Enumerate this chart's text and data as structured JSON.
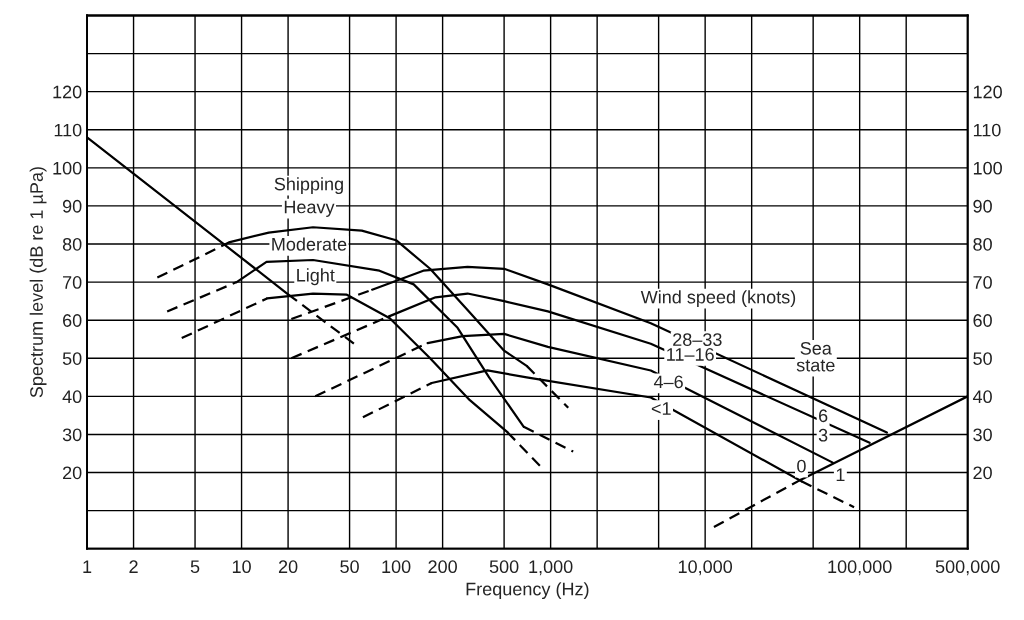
{
  "chart_data": {
    "type": "line",
    "xlabel": "Frequency (Hz)",
    "ylabel": "Spectrum level (dB re 1 µPa)",
    "log": "x",
    "grid": true,
    "legend": false,
    "xlim": [
      1,
      500000
    ],
    "ylim": [
      0,
      140
    ],
    "y2lim": [
      0,
      140
    ],
    "xticks": [
      1,
      2,
      5,
      10,
      20,
      50,
      100,
      200,
      500,
      {
        "value": 1000,
        "label": "1,000"
      },
      {
        "value": 2000,
        "label": null
      },
      {
        "value": 5000,
        "label": null
      },
      {
        "value": 10000,
        "label": "10,000"
      },
      {
        "value": 20000,
        "label": null
      },
      {
        "value": 50000,
        "label": null
      },
      {
        "value": 100000,
        "label": "100,000"
      },
      {
        "value": 200000,
        "label": null
      },
      {
        "value": 500000,
        "label": "500,000"
      }
    ],
    "yticks": [
      {
        "value": 10,
        "label": null
      },
      20,
      30,
      40,
      50,
      60,
      70,
      80,
      90,
      100,
      110,
      120,
      {
        "value": 130,
        "label": null
      }
    ],
    "y2ticks": [
      {
        "value": 10,
        "label": null
      },
      20,
      30,
      40,
      50,
      60,
      70,
      80,
      90,
      100,
      110,
      120,
      {
        "value": 130,
        "label": null
      }
    ],
    "series": [
      {
        "x": [
          1,
          20
        ],
        "values": [
          108,
          66.8
        ],
        "color": "#000000",
        "line_style": "solid"
      },
      {
        "x": [
          20,
          56
        ],
        "values": [
          66.8,
          53.2
        ],
        "color": "#000000",
        "line_style": "dashed"
      },
      {
        "x": [
          2.85,
          5,
          8.4
        ],
        "values": [
          71.2,
          76,
          80.5
        ],
        "color": "#000000",
        "line_style": "dashed"
      },
      {
        "x": [
          8.4,
          15,
          29,
          60,
          100,
          166,
          300,
          500,
          700
        ],
        "values": [
          80.5,
          83,
          84.4,
          83.5,
          81,
          73.5,
          62,
          52,
          48
        ],
        "color": "#000000",
        "line_style": "solid"
      },
      {
        "x": [
          700,
          1300
        ],
        "values": [
          48,
          37
        ],
        "color": "#000000",
        "line_style": "dashed"
      },
      {
        "x": [
          3.3,
          9.3
        ],
        "values": [
          62.3,
          70
        ],
        "color": "#000000",
        "line_style": "dashed"
      },
      {
        "x": [
          9.3,
          14.5,
          29,
          78,
          130,
          250,
          400,
          670
        ],
        "values": [
          70,
          75.3,
          75.8,
          73,
          69.4,
          58,
          45,
          32
        ],
        "color": "#000000",
        "line_style": "solid"
      },
      {
        "x": [
          670,
          1400
        ],
        "values": [
          32,
          25.5
        ],
        "color": "#000000",
        "line_style": "dashed"
      },
      {
        "x": [
          4.1,
          14.6
        ],
        "values": [
          55.3,
          65.7
        ],
        "color": "#000000",
        "line_style": "dashed"
      },
      {
        "x": [
          14.6,
          29,
          48,
          91,
          166,
          300,
          525
        ],
        "values": [
          65.7,
          67,
          66.7,
          60.5,
          50,
          39,
          30.6
        ],
        "color": "#000000",
        "line_style": "solid"
      },
      {
        "x": [
          525,
          900
        ],
        "values": [
          30.6,
          20.8
        ],
        "color": "#000000",
        "line_style": "dashed"
      },
      {
        "x": [
          21,
          70
        ],
        "values": [
          60.3,
          68
        ],
        "color": "#000000",
        "line_style": "dashed"
      },
      {
        "x": [
          70,
          150,
          290,
          500,
          960,
          4450,
          150000
        ],
        "values": [
          68,
          73,
          74,
          73.5,
          69.4,
          59.2,
          30.5
        ],
        "color": "#000000",
        "line_style": "solid"
      },
      {
        "x": [
          21,
          90
        ],
        "values": [
          50,
          61
        ],
        "color": "#000000",
        "line_style": "dashed"
      },
      {
        "x": [
          90,
          180,
          290,
          500,
          960,
          4450,
          116000
        ],
        "values": [
          61,
          66,
          67,
          65,
          62.3,
          53.8,
          27.8
        ],
        "color": "#000000",
        "line_style": "solid"
      },
      {
        "x": [
          30,
          160
        ],
        "values": [
          40,
          54
        ],
        "color": "#000000",
        "line_style": "dashed"
      },
      {
        "x": [
          160,
          270,
          500,
          960,
          4450,
          67000
        ],
        "values": [
          54,
          55.8,
          56.4,
          53,
          46.8,
          22.6
        ],
        "color": "#000000",
        "line_style": "solid"
      },
      {
        "x": [
          61,
          170
        ],
        "values": [
          34.5,
          43.5
        ],
        "color": "#000000",
        "line_style": "dashed"
      },
      {
        "x": [
          170,
          390,
          700,
          4450,
          42000
        ],
        "values": [
          43.5,
          46.8,
          45,
          39.7,
          17.7
        ],
        "color": "#000000",
        "line_style": "solid"
      },
      {
        "x": [
          42000,
          92000
        ],
        "values": [
          17.7,
          10.9
        ],
        "color": "#000000",
        "line_style": "dashed"
      },
      {
        "x": [
          11400,
          42000
        ],
        "values": [
          5.7,
          18.2
        ],
        "color": "#000000",
        "line_style": "dashed"
      },
      {
        "x": [
          42000,
          500000
        ],
        "values": [
          18.2,
          40
        ],
        "color": "#000000",
        "line_style": "solid"
      }
    ],
    "annotations": [
      "Shipping",
      "Heavy",
      "Moderate",
      {
        "text": "Light",
        "x": 30,
        "y": 71.4
      },
      "Wind speed (knots)",
      {
        "text": "28–33",
        "x": 8900,
        "y": 54.5
      },
      {
        "text": "11–16",
        "x": 8000,
        "y": 50.6
      },
      {
        "text": "4–6",
        "x": 5800,
        "y": 43.4
      },
      {
        "text": "<1",
        "x": 5200,
        "y": 36.4
      },
      {
        "text": "Sea\nstate",
        "x": 52000,
        "y": 50
      },
      {
        "text": "6",
        "x": 58000,
        "y": 34.5
      },
      {
        "text": "3",
        "x": 58000,
        "y": 29.4
      },
      {
        "text": "1",
        "x": 75000,
        "y": 19
      },
      {
        "text": "0",
        "x": 42000,
        "y": 21.3
      }
    ]
  }
}
